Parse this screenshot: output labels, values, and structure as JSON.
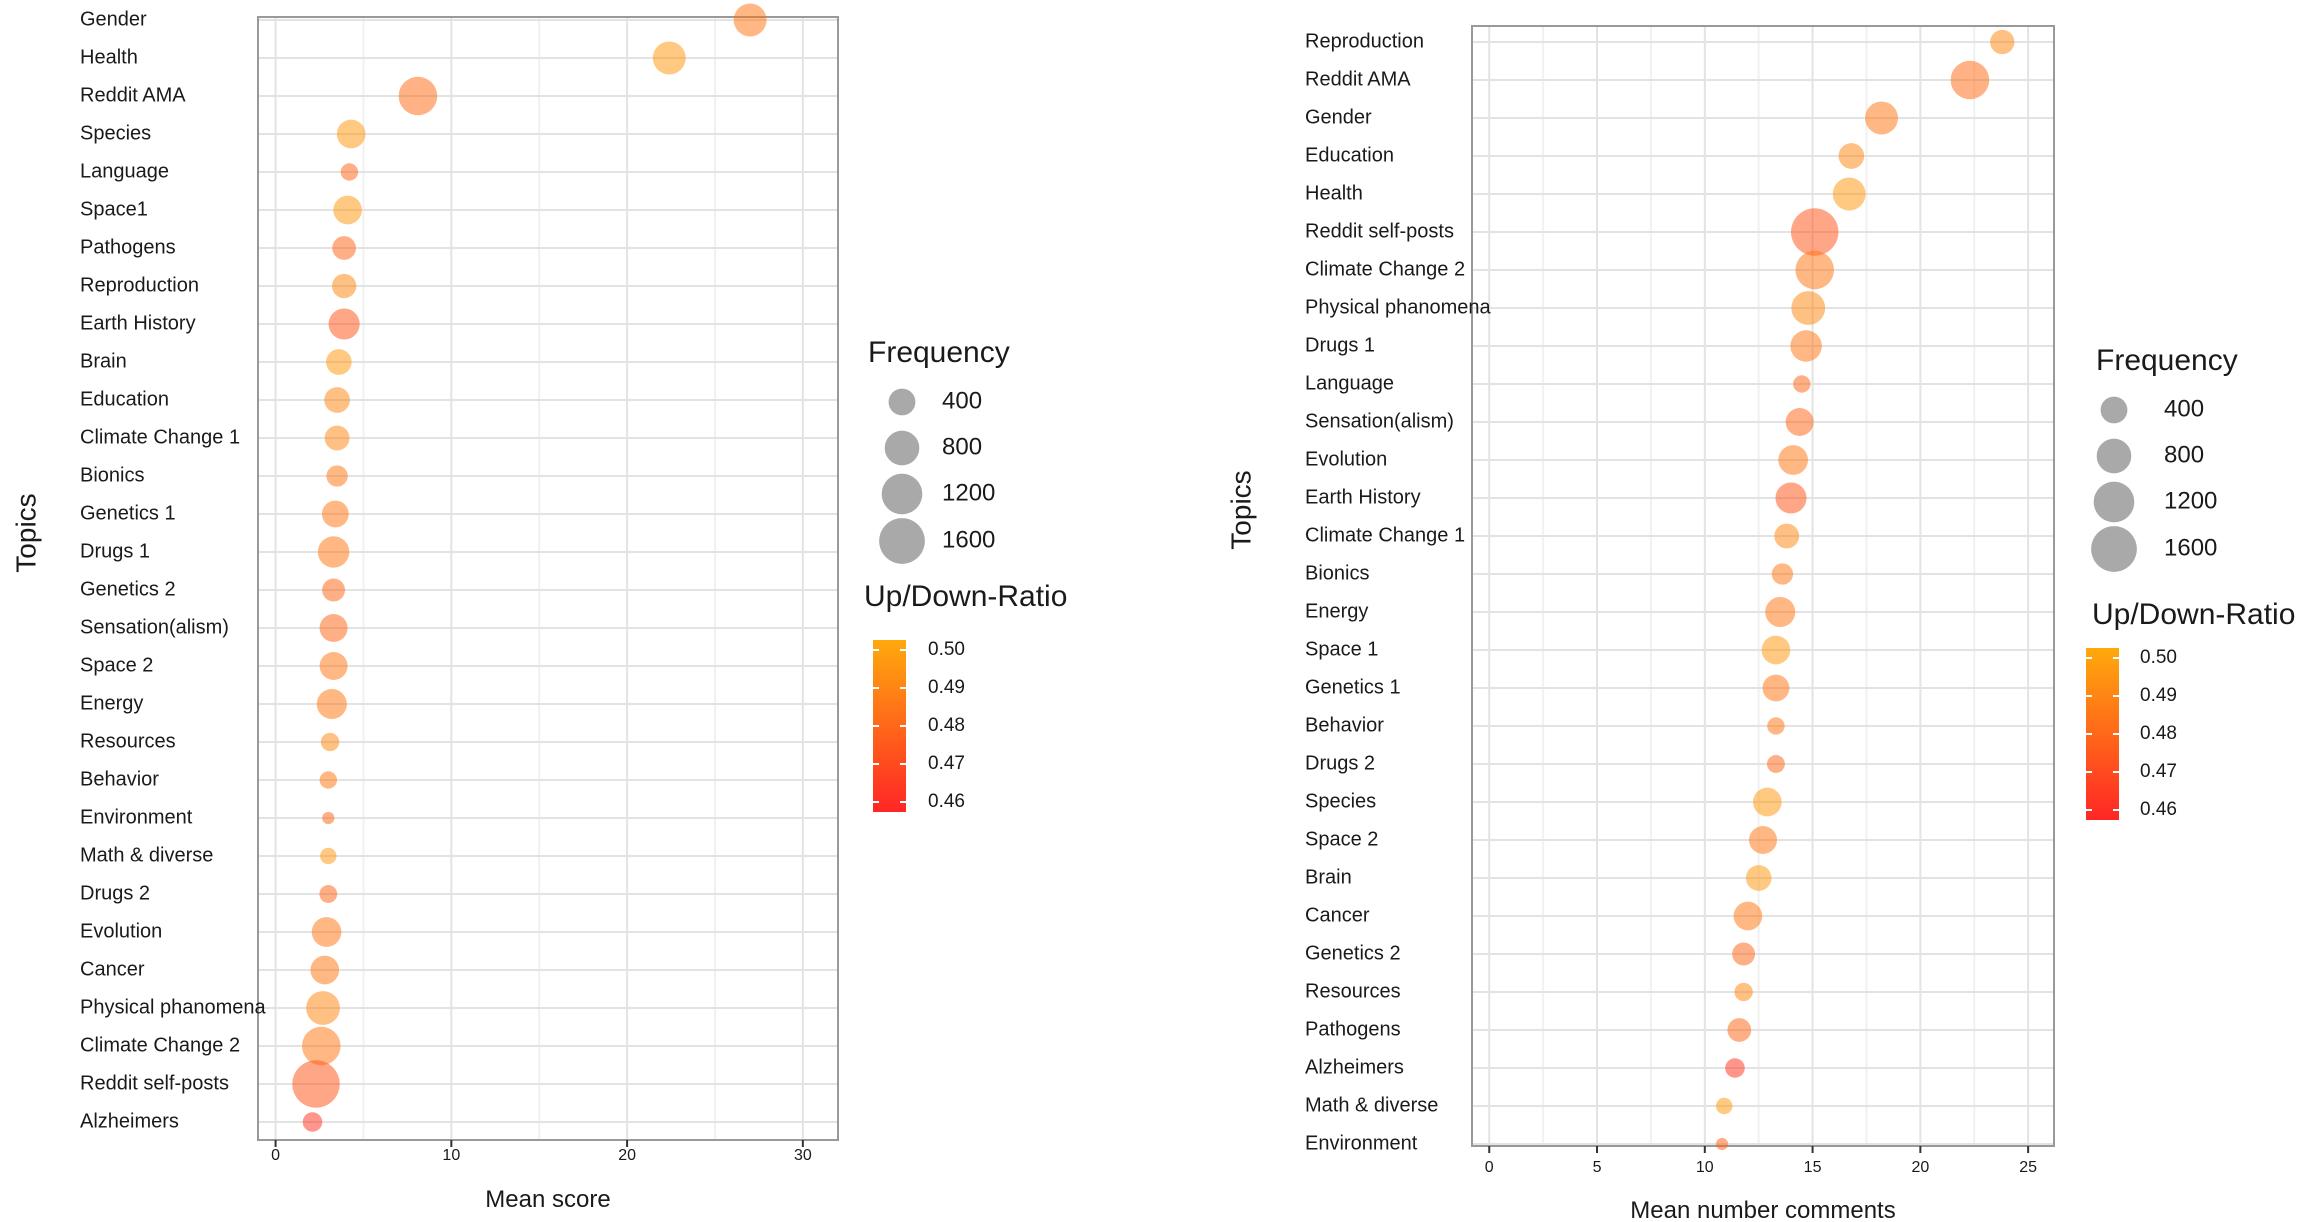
{
  "chart_data": [
    {
      "type": "scatter",
      "xlabel": "Mean score",
      "ylabel": "Topics",
      "xlim": [
        -1,
        32
      ],
      "xticks": [
        0,
        10,
        20,
        30
      ],
      "grid": true,
      "legend_position": "right",
      "points": [
        {
          "topic": "Gender",
          "x": 27.0,
          "frequency": 700,
          "ratio": 0.485
        },
        {
          "topic": "Health",
          "x": 22.4,
          "frequency": 700,
          "ratio": 0.495
        },
        {
          "topic": "Reddit AMA",
          "x": 8.1,
          "frequency": 1050,
          "ratio": 0.482
        },
        {
          "topic": "Species",
          "x": 4.3,
          "frequency": 480,
          "ratio": 0.495
        },
        {
          "topic": "Language",
          "x": 4.2,
          "frequency": 100,
          "ratio": 0.48
        },
        {
          "topic": "Space1",
          "x": 4.1,
          "frequency": 480,
          "ratio": 0.495
        },
        {
          "topic": "Pathogens",
          "x": 3.9,
          "frequency": 280,
          "ratio": 0.48
        },
        {
          "topic": "Reproduction",
          "x": 3.9,
          "frequency": 300,
          "ratio": 0.49
        },
        {
          "topic": "Earth History",
          "x": 3.9,
          "frequency": 600,
          "ratio": 0.475
        },
        {
          "topic": "Brain",
          "x": 3.6,
          "frequency": 350,
          "ratio": 0.495
        },
        {
          "topic": "Education",
          "x": 3.5,
          "frequency": 350,
          "ratio": 0.49
        },
        {
          "topic": "Climate Change 1",
          "x": 3.5,
          "frequency": 320,
          "ratio": 0.49
        },
        {
          "topic": "Bionics",
          "x": 3.5,
          "frequency": 200,
          "ratio": 0.485
        },
        {
          "topic": "Genetics 1",
          "x": 3.4,
          "frequency": 400,
          "ratio": 0.485
        },
        {
          "topic": "Drugs 1",
          "x": 3.3,
          "frequency": 620,
          "ratio": 0.485
        },
        {
          "topic": "Genetics 2",
          "x": 3.3,
          "frequency": 250,
          "ratio": 0.48
        },
        {
          "topic": "Sensation(alism)",
          "x": 3.3,
          "frequency": 450,
          "ratio": 0.48
        },
        {
          "topic": "Space 2",
          "x": 3.3,
          "frequency": 450,
          "ratio": 0.485
        },
        {
          "topic": "Energy",
          "x": 3.2,
          "frequency": 550,
          "ratio": 0.485
        },
        {
          "topic": "Resources",
          "x": 3.1,
          "frequency": 120,
          "ratio": 0.49
        },
        {
          "topic": "Behavior",
          "x": 3.0,
          "frequency": 100,
          "ratio": 0.485
        },
        {
          "topic": "Environment",
          "x": 3.0,
          "frequency": 20,
          "ratio": 0.48
        },
        {
          "topic": "Math & diverse",
          "x": 3.0,
          "frequency": 80,
          "ratio": 0.495
        },
        {
          "topic": "Drugs 2",
          "x": 3.0,
          "frequency": 110,
          "ratio": 0.48
        },
        {
          "topic": "Evolution",
          "x": 2.9,
          "frequency": 530,
          "ratio": 0.485
        },
        {
          "topic": "Cancer",
          "x": 2.8,
          "frequency": 480,
          "ratio": 0.485
        },
        {
          "topic": "Physical phanomena",
          "x": 2.7,
          "frequency": 750,
          "ratio": 0.49
        },
        {
          "topic": "Climate Change 2",
          "x": 2.6,
          "frequency": 1050,
          "ratio": 0.485
        },
        {
          "topic": "Reddit self-posts",
          "x": 2.3,
          "frequency": 1750,
          "ratio": 0.475
        },
        {
          "topic": "Alzheimers",
          "x": 2.1,
          "frequency": 150,
          "ratio": 0.465
        }
      ]
    },
    {
      "type": "scatter",
      "xlabel": "Mean number comments",
      "ylabel": "Topics",
      "xlim": [
        -0.8,
        26.2
      ],
      "xticks": [
        0,
        5,
        10,
        15,
        20,
        25
      ],
      "grid": true,
      "legend_position": "right",
      "points": [
        {
          "topic": "Reproduction",
          "x": 23.8,
          "frequency": 300,
          "ratio": 0.49
        },
        {
          "topic": "Reddit AMA",
          "x": 22.3,
          "frequency": 1050,
          "ratio": 0.482
        },
        {
          "topic": "Gender",
          "x": 18.2,
          "frequency": 700,
          "ratio": 0.485
        },
        {
          "topic": "Education",
          "x": 16.8,
          "frequency": 350,
          "ratio": 0.49
        },
        {
          "topic": "Health",
          "x": 16.7,
          "frequency": 700,
          "ratio": 0.495
        },
        {
          "topic": "Reddit self-posts",
          "x": 15.1,
          "frequency": 1750,
          "ratio": 0.475
        },
        {
          "topic": "Climate Change 2",
          "x": 15.1,
          "frequency": 1050,
          "ratio": 0.485
        },
        {
          "topic": "Physical phanomena",
          "x": 14.8,
          "frequency": 750,
          "ratio": 0.49
        },
        {
          "topic": "Drugs 1",
          "x": 14.7,
          "frequency": 620,
          "ratio": 0.485
        },
        {
          "topic": "Language",
          "x": 14.5,
          "frequency": 100,
          "ratio": 0.48
        },
        {
          "topic": "Sensation(alism)",
          "x": 14.4,
          "frequency": 450,
          "ratio": 0.48
        },
        {
          "topic": "Evolution",
          "x": 14.1,
          "frequency": 530,
          "ratio": 0.485
        },
        {
          "topic": "Earth History",
          "x": 14.0,
          "frequency": 600,
          "ratio": 0.475
        },
        {
          "topic": "Climate Change 1",
          "x": 13.8,
          "frequency": 320,
          "ratio": 0.49
        },
        {
          "topic": "Bionics",
          "x": 13.6,
          "frequency": 200,
          "ratio": 0.485
        },
        {
          "topic": "Energy",
          "x": 13.5,
          "frequency": 550,
          "ratio": 0.485
        },
        {
          "topic": "Space 1",
          "x": 13.3,
          "frequency": 480,
          "ratio": 0.495
        },
        {
          "topic": "Genetics 1",
          "x": 13.3,
          "frequency": 400,
          "ratio": 0.485
        },
        {
          "topic": "Behavior",
          "x": 13.3,
          "frequency": 100,
          "ratio": 0.485
        },
        {
          "topic": "Drugs 2",
          "x": 13.3,
          "frequency": 110,
          "ratio": 0.48
        },
        {
          "topic": "Species",
          "x": 12.9,
          "frequency": 480,
          "ratio": 0.495
        },
        {
          "topic": "Space 2",
          "x": 12.7,
          "frequency": 450,
          "ratio": 0.485
        },
        {
          "topic": "Brain",
          "x": 12.5,
          "frequency": 350,
          "ratio": 0.495
        },
        {
          "topic": "Cancer",
          "x": 12.0,
          "frequency": 480,
          "ratio": 0.485
        },
        {
          "topic": "Genetics 2",
          "x": 11.8,
          "frequency": 250,
          "ratio": 0.48
        },
        {
          "topic": "Resources",
          "x": 11.8,
          "frequency": 120,
          "ratio": 0.49
        },
        {
          "topic": "Pathogens",
          "x": 11.6,
          "frequency": 280,
          "ratio": 0.48
        },
        {
          "topic": "Alzheimers",
          "x": 11.4,
          "frequency": 150,
          "ratio": 0.465
        },
        {
          "topic": "Math & diverse",
          "x": 10.9,
          "frequency": 80,
          "ratio": 0.495
        },
        {
          "topic": "Environment",
          "x": 10.8,
          "frequency": 20,
          "ratio": 0.48
        }
      ]
    }
  ],
  "legends": [
    {
      "size_title": "Frequency",
      "size_values": [
        400,
        800,
        1200,
        1600
      ],
      "color_title": "Up/Down-Ratio",
      "color_ticks": [
        "0.50",
        "0.49",
        "0.48",
        "0.47",
        "0.46"
      ]
    },
    {
      "size_title": "Frequency",
      "size_values": [
        400,
        800,
        1200,
        1600
      ],
      "color_title": "Up/Down-Ratio",
      "color_ticks": [
        "0.50",
        "0.49",
        "0.48",
        "0.47",
        "0.46"
      ]
    }
  ],
  "colors": {
    "low": "#ff1a1a",
    "high": "#ffa500",
    "size_key": "#9a9a9a",
    "panel_border": "#999999",
    "grid_major": "#e3e3e3",
    "grid_minor": "#f1f1f1"
  }
}
